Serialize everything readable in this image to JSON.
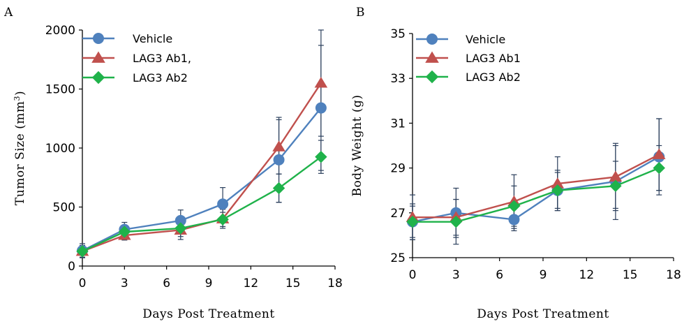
{
  "colors": {
    "vehicle": "#4f81bd",
    "ab1": "#c0504d",
    "ab2": "#1fb24a",
    "errorbar": "#2b3f5c"
  },
  "chart_data": [
    {
      "panel": "A",
      "type": "line",
      "xlabel": "Days Post Treatment",
      "ylabel_base": "Tumor Size (mm",
      "ylabel_sup": "3",
      "ylabel_tail": ")",
      "xlim": [
        0,
        18
      ],
      "ylim": [
        0,
        2000
      ],
      "xticks": [
        0,
        3,
        6,
        9,
        12,
        15,
        18
      ],
      "yticks": [
        0,
        500,
        1000,
        1500,
        2000
      ],
      "legend_position": "top-left",
      "x": [
        0,
        3,
        7,
        10,
        14,
        17
      ],
      "series": [
        {
          "name": "Vehicle",
          "marker": "circle",
          "color": "#4f81bd",
          "values": [
            130,
            310,
            385,
            525,
            900,
            1340
          ],
          "errors": [
            60,
            60,
            90,
            140,
            360,
            530
          ]
        },
        {
          "name": "LAG3 Ab1,",
          "marker": "triangle",
          "color": "#c0504d",
          "values": [
            125,
            260,
            305,
            400,
            1010,
            1550
          ],
          "errors": [
            50,
            40,
            80,
            80,
            230,
            450
          ]
        },
        {
          "name": "LAG3 Ab2",
          "marker": "diamond",
          "color": "#1fb24a",
          "values": [
            125,
            290,
            320,
            395,
            660,
            925
          ],
          "errors": [
            50,
            50,
            70,
            60,
            120,
            140
          ]
        }
      ]
    },
    {
      "panel": "B",
      "type": "line",
      "xlabel": "Days Post Treatment",
      "ylabel": "Body Weight (g)",
      "xlim": [
        0,
        18
      ],
      "ylim": [
        25,
        35
      ],
      "xticks": [
        0,
        3,
        6,
        9,
        12,
        15,
        18
      ],
      "yticks": [
        25,
        27,
        29,
        31,
        33,
        35
      ],
      "legend_position": "top-left",
      "x": [
        0,
        3,
        7,
        10,
        14,
        17
      ],
      "series": [
        {
          "name": "Vehicle",
          "marker": "circle",
          "color": "#4f81bd",
          "values": [
            26.6,
            27.0,
            26.7,
            28.0,
            28.4,
            29.5
          ],
          "errors": [
            0.8,
            1.1,
            0.5,
            0.8,
            1.7,
            1.7
          ]
        },
        {
          "name": "LAG3 Ab1",
          "marker": "triangle",
          "color": "#c0504d",
          "values": [
            26.8,
            26.8,
            27.5,
            28.3,
            28.6,
            29.6
          ],
          "errors": [
            1.0,
            0.8,
            1.2,
            1.2,
            1.4,
            1.6
          ]
        },
        {
          "name": "LAG3 Ab2",
          "marker": "diamond",
          "color": "#1fb24a",
          "values": [
            26.6,
            26.6,
            27.3,
            28.0,
            28.2,
            29.0
          ],
          "errors": [
            0.7,
            1.0,
            0.9,
            0.9,
            1.1,
            1.0
          ]
        }
      ]
    }
  ]
}
